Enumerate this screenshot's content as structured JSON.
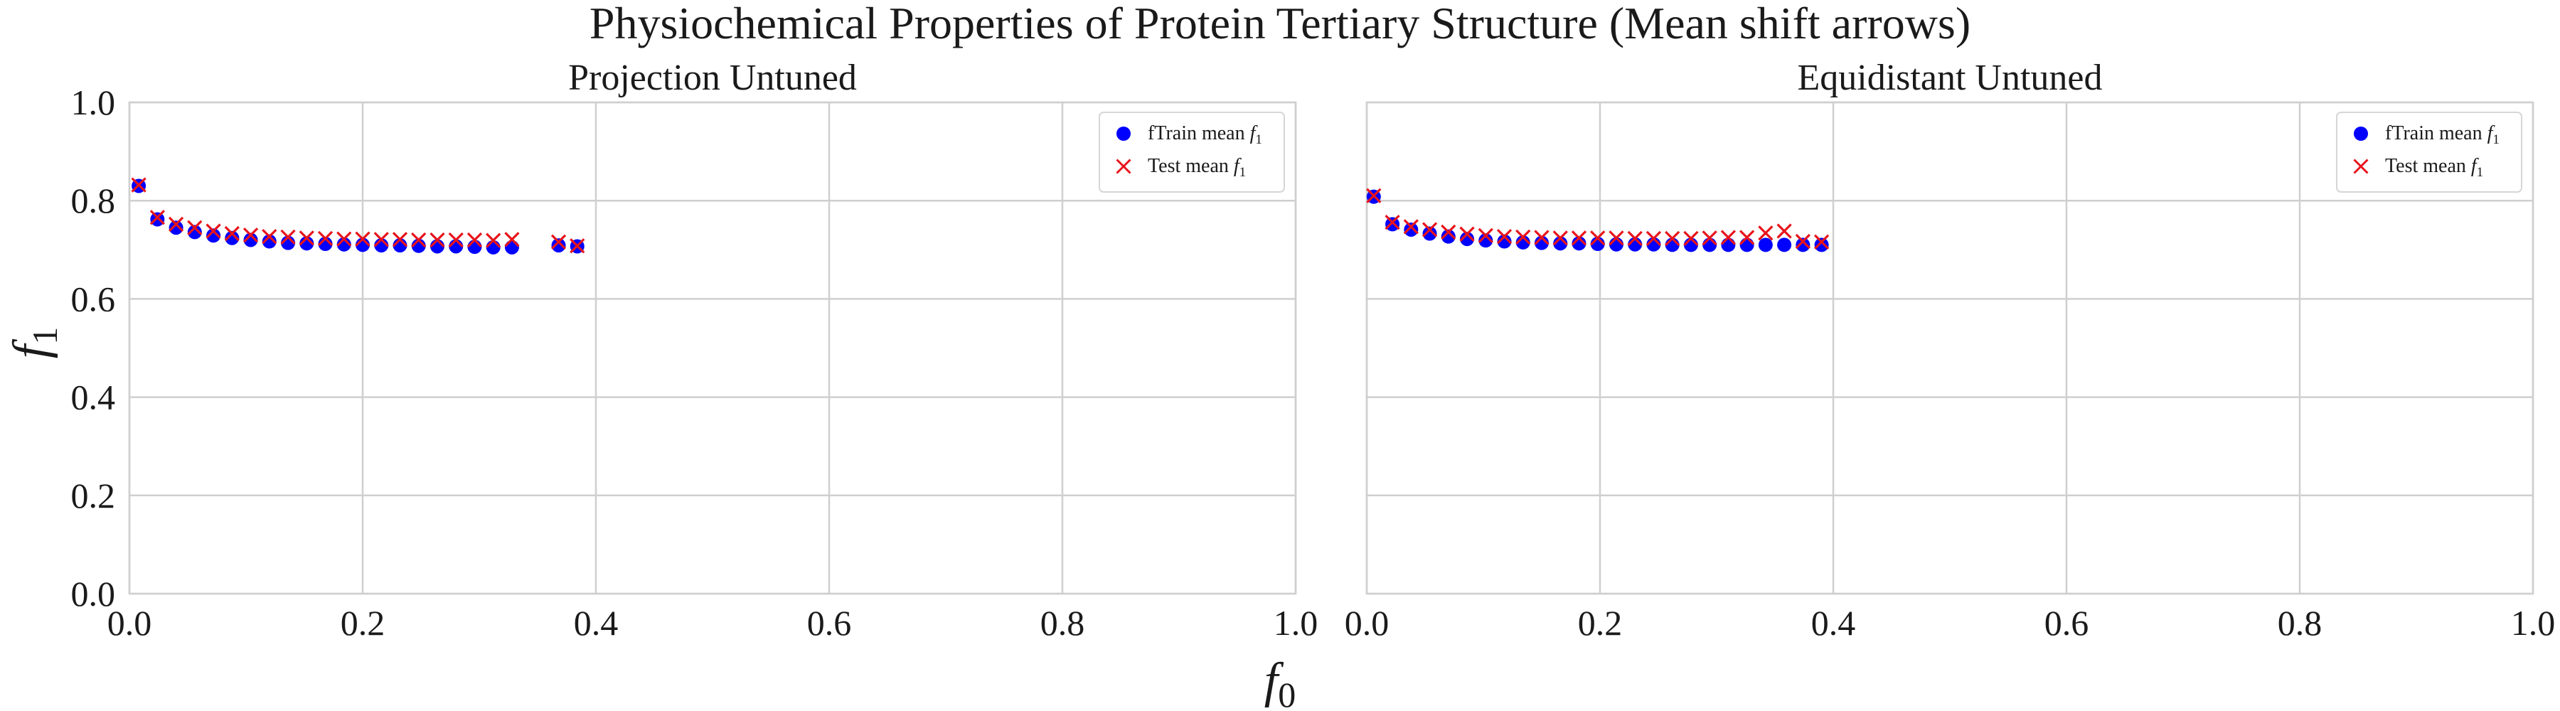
{
  "figure": {
    "title": "Physiochemical Properties of Protein Tertiary Structure (Mean shift arrows)",
    "xlabel_base": "f",
    "xlabel_sub": "0",
    "ylabel_base": "f",
    "ylabel_sub": "1"
  },
  "colors": {
    "train": "#0000ff",
    "test": "#e8141b",
    "grid": "#cfcfcf"
  },
  "chart_data": [
    {
      "type": "scatter",
      "title": "Projection Untuned",
      "xlim": [
        0,
        1
      ],
      "ylim": [
        0,
        1
      ],
      "xticks": [
        "0.0",
        "0.2",
        "0.4",
        "0.6",
        "0.8",
        "1.0"
      ],
      "yticks": [
        "0.0",
        "0.2",
        "0.4",
        "0.6",
        "0.8",
        "1.0"
      ],
      "grid": true,
      "legend_position": "top-right",
      "series": [
        {
          "name": "fTrain mean",
          "name_math": "f",
          "name_sub": "1",
          "marker": "circle",
          "x": [
            0.008,
            0.024,
            0.04,
            0.056,
            0.072,
            0.088,
            0.104,
            0.12,
            0.136,
            0.152,
            0.168,
            0.184,
            0.2,
            0.216,
            0.232,
            0.248,
            0.264,
            0.28,
            0.296,
            0.312,
            0.328,
            0.368,
            0.384
          ],
          "y": [
            0.83,
            0.762,
            0.745,
            0.736,
            0.729,
            0.724,
            0.72,
            0.717,
            0.714,
            0.713,
            0.712,
            0.711,
            0.71,
            0.709,
            0.709,
            0.708,
            0.707,
            0.707,
            0.706,
            0.705,
            0.705,
            0.709,
            0.707
          ]
        },
        {
          "name": "Test mean",
          "name_math": "f",
          "name_sub": "1",
          "marker": "x",
          "x": [
            0.008,
            0.024,
            0.04,
            0.056,
            0.072,
            0.088,
            0.104,
            0.12,
            0.136,
            0.152,
            0.168,
            0.184,
            0.2,
            0.216,
            0.232,
            0.248,
            0.264,
            0.28,
            0.296,
            0.312,
            0.328,
            0.368,
            0.384
          ],
          "y": [
            0.832,
            0.766,
            0.752,
            0.745,
            0.738,
            0.733,
            0.73,
            0.727,
            0.726,
            0.724,
            0.723,
            0.722,
            0.722,
            0.721,
            0.721,
            0.72,
            0.72,
            0.72,
            0.72,
            0.719,
            0.721,
            0.716,
            0.708
          ]
        }
      ]
    },
    {
      "type": "scatter",
      "title": "Equidistant Untuned",
      "xlim": [
        0,
        1
      ],
      "ylim": [
        0,
        1
      ],
      "xticks": [
        "0.0",
        "0.2",
        "0.4",
        "0.6",
        "0.8",
        "1.0"
      ],
      "yticks": [],
      "grid": true,
      "legend_position": "top-right",
      "series": [
        {
          "name": "fTrain mean",
          "name_math": "f",
          "name_sub": "1",
          "marker": "circle",
          "x": [
            0.006,
            0.022,
            0.038,
            0.054,
            0.07,
            0.086,
            0.102,
            0.118,
            0.134,
            0.15,
            0.166,
            0.182,
            0.198,
            0.214,
            0.23,
            0.246,
            0.262,
            0.278,
            0.294,
            0.31,
            0.326,
            0.342,
            0.358,
            0.374,
            0.39
          ],
          "y": [
            0.808,
            0.752,
            0.741,
            0.733,
            0.727,
            0.722,
            0.719,
            0.717,
            0.715,
            0.714,
            0.713,
            0.713,
            0.712,
            0.711,
            0.711,
            0.711,
            0.71,
            0.71,
            0.71,
            0.71,
            0.71,
            0.71,
            0.71,
            0.71,
            0.71
          ]
        },
        {
          "name": "Test mean",
          "name_math": "f",
          "name_sub": "1",
          "marker": "x",
          "x": [
            0.006,
            0.022,
            0.038,
            0.054,
            0.07,
            0.086,
            0.102,
            0.118,
            0.134,
            0.15,
            0.166,
            0.182,
            0.198,
            0.214,
            0.23,
            0.246,
            0.262,
            0.278,
            0.294,
            0.31,
            0.326,
            0.342,
            0.358,
            0.374,
            0.39
          ],
          "y": [
            0.81,
            0.756,
            0.747,
            0.741,
            0.736,
            0.732,
            0.729,
            0.727,
            0.726,
            0.725,
            0.724,
            0.724,
            0.724,
            0.724,
            0.723,
            0.723,
            0.723,
            0.723,
            0.724,
            0.725,
            0.725,
            0.734,
            0.738,
            0.717,
            0.716
          ]
        }
      ]
    }
  ]
}
